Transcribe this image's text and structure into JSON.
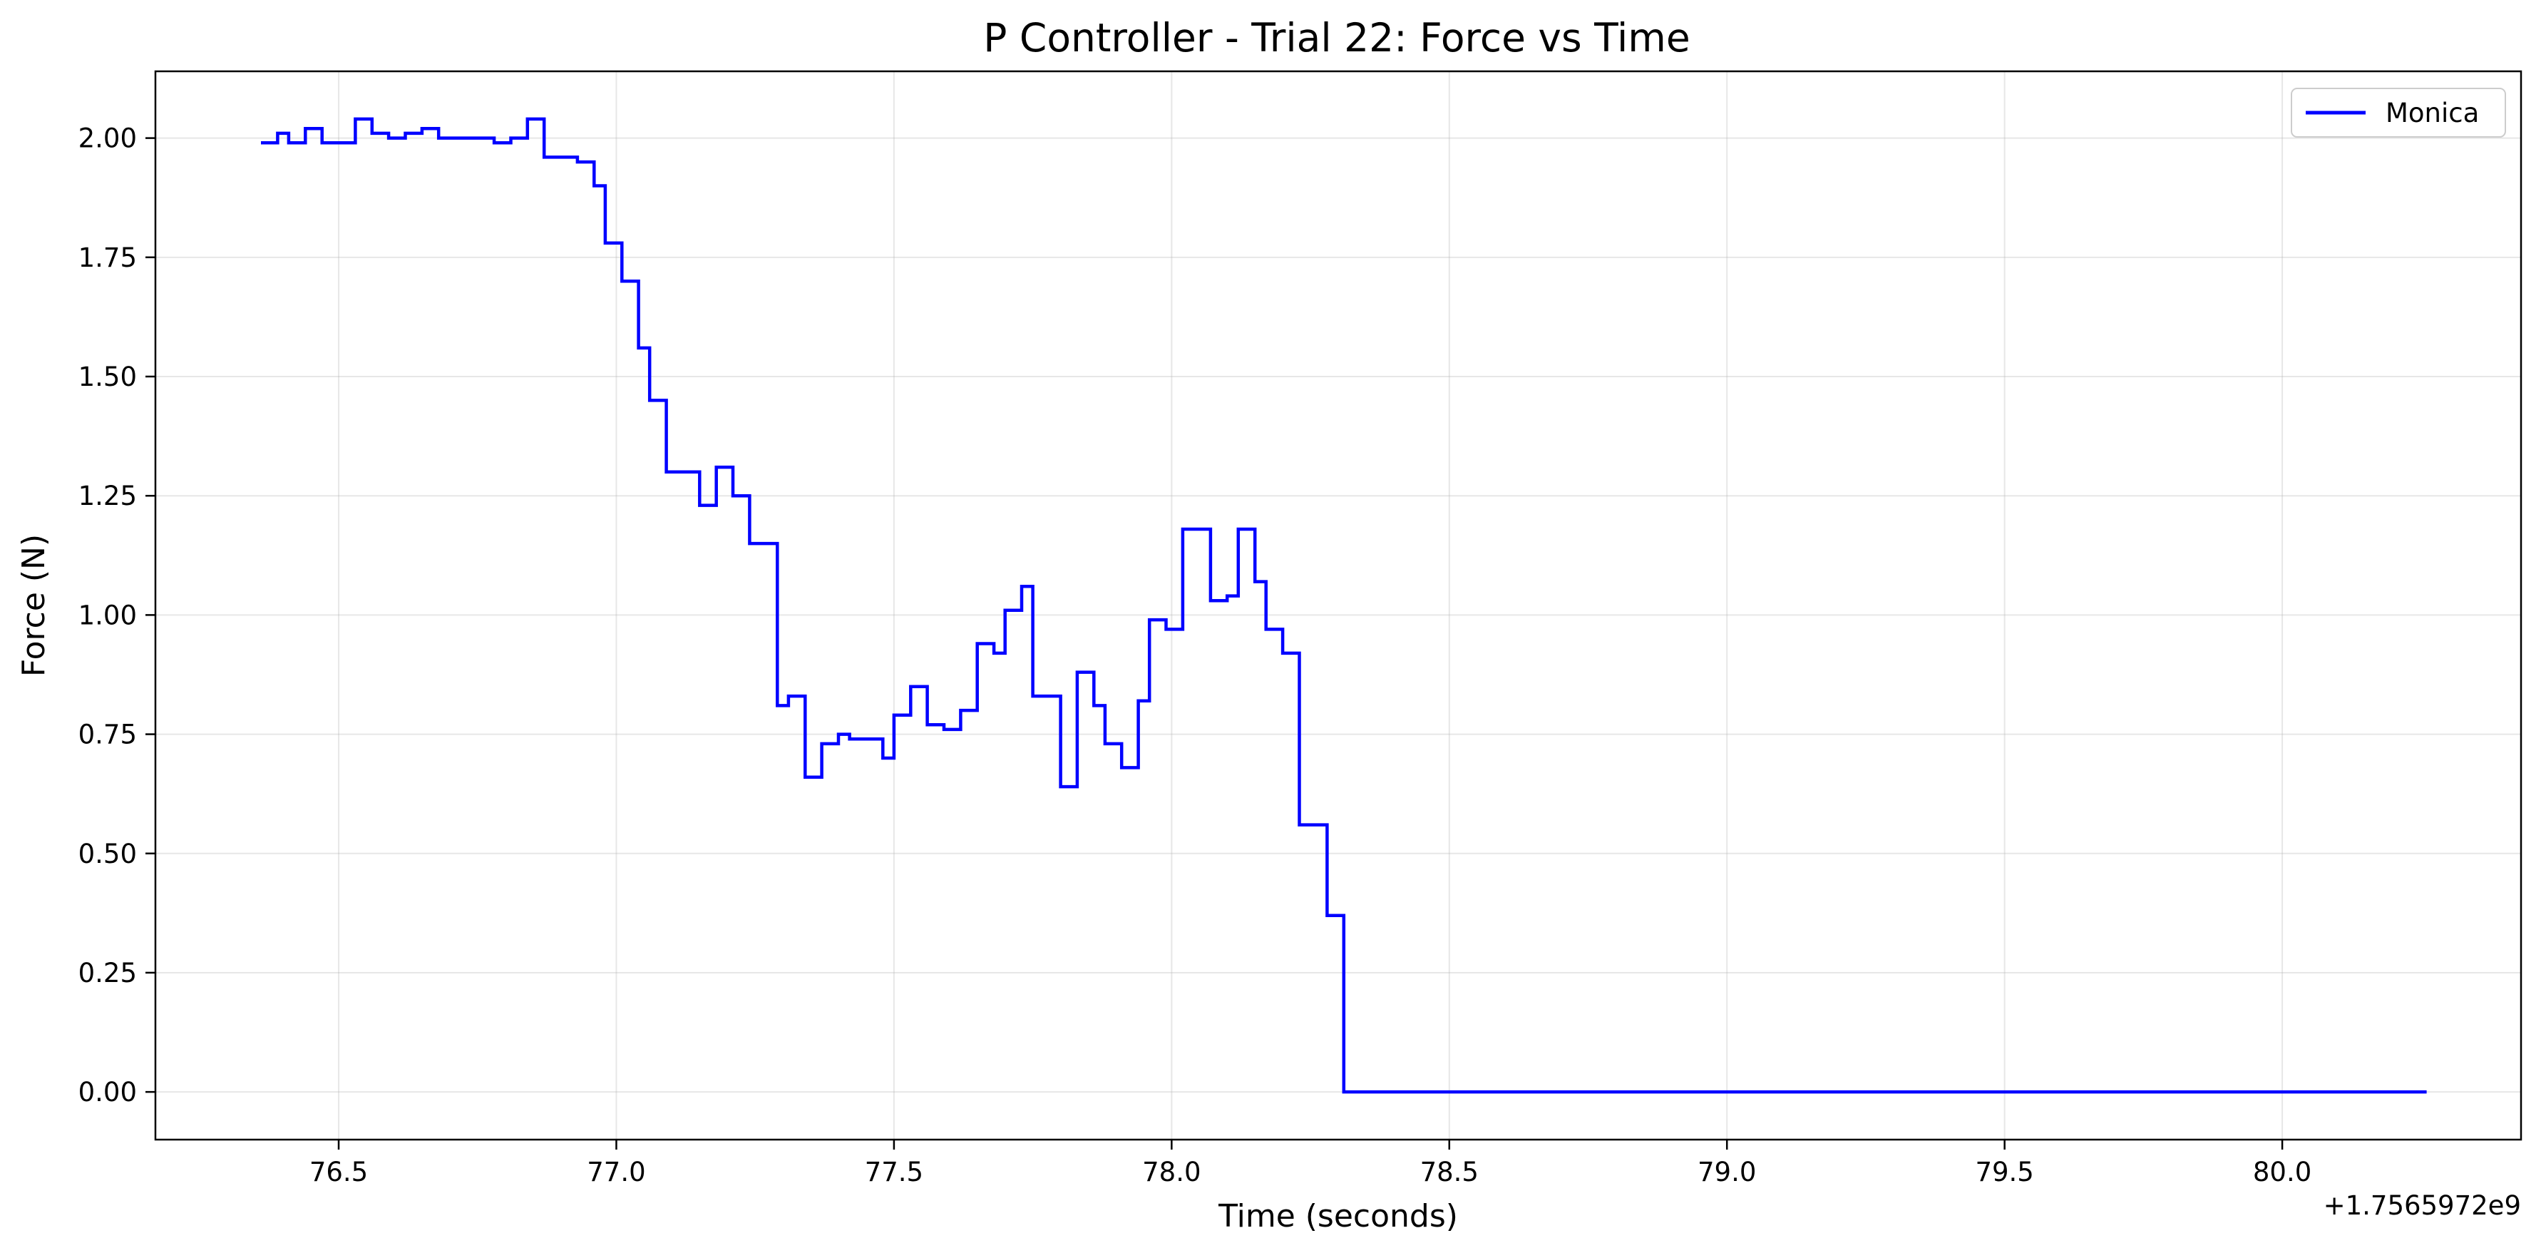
{
  "chart_data": {
    "type": "line",
    "title": "P Controller - Trial 22: Force vs Time",
    "xlabel": "Time (seconds)",
    "ylabel": "Force (N)",
    "x_offset_label": "+1.7565972e9",
    "xlim": [
      76.17,
      80.43
    ],
    "ylim": [
      -0.1,
      2.14
    ],
    "x_ticks": [
      {
        "value": 76.5,
        "label": "76.5"
      },
      {
        "value": 77.0,
        "label": "77.0"
      },
      {
        "value": 77.5,
        "label": "77.5"
      },
      {
        "value": 78.0,
        "label": "78.0"
      },
      {
        "value": 78.5,
        "label": "78.5"
      },
      {
        "value": 79.0,
        "label": "79.0"
      },
      {
        "value": 79.5,
        "label": "79.5"
      },
      {
        "value": 80.0,
        "label": "80.0"
      }
    ],
    "y_ticks": [
      {
        "value": 0.0,
        "label": "0.00"
      },
      {
        "value": 0.25,
        "label": "0.25"
      },
      {
        "value": 0.5,
        "label": "0.50"
      },
      {
        "value": 0.75,
        "label": "0.75"
      },
      {
        "value": 1.0,
        "label": "1.00"
      },
      {
        "value": 1.25,
        "label": "1.25"
      },
      {
        "value": 1.5,
        "label": "1.50"
      },
      {
        "value": 1.75,
        "label": "1.75"
      },
      {
        "value": 2.0,
        "label": "2.00"
      }
    ],
    "grid": true,
    "legend_position": "top-right",
    "series": [
      {
        "name": "Monica",
        "color": "#0000ff",
        "step": true,
        "points": [
          [
            76.36,
            1.99
          ],
          [
            76.39,
            2.01
          ],
          [
            76.41,
            1.99
          ],
          [
            76.44,
            2.02
          ],
          [
            76.47,
            1.99
          ],
          [
            76.5,
            1.99
          ],
          [
            76.53,
            2.04
          ],
          [
            76.56,
            2.01
          ],
          [
            76.59,
            2.0
          ],
          [
            76.62,
            2.01
          ],
          [
            76.65,
            2.02
          ],
          [
            76.68,
            2.0
          ],
          [
            76.71,
            2.0
          ],
          [
            76.74,
            2.0
          ],
          [
            76.78,
            1.99
          ],
          [
            76.81,
            2.0
          ],
          [
            76.84,
            2.04
          ],
          [
            76.87,
            1.96
          ],
          [
            76.9,
            1.96
          ],
          [
            76.93,
            1.95
          ],
          [
            76.96,
            1.9
          ],
          [
            76.98,
            1.78
          ],
          [
            77.01,
            1.7
          ],
          [
            77.04,
            1.56
          ],
          [
            77.06,
            1.45
          ],
          [
            77.09,
            1.3
          ],
          [
            77.12,
            1.3
          ],
          [
            77.15,
            1.23
          ],
          [
            77.18,
            1.31
          ],
          [
            77.21,
            1.25
          ],
          [
            77.24,
            1.15
          ],
          [
            77.27,
            1.15
          ],
          [
            77.29,
            0.81
          ],
          [
            77.31,
            0.83
          ],
          [
            77.34,
            0.66
          ],
          [
            77.37,
            0.73
          ],
          [
            77.4,
            0.75
          ],
          [
            77.42,
            0.74
          ],
          [
            77.45,
            0.74
          ],
          [
            77.48,
            0.7
          ],
          [
            77.5,
            0.79
          ],
          [
            77.53,
            0.85
          ],
          [
            77.56,
            0.77
          ],
          [
            77.59,
            0.76
          ],
          [
            77.62,
            0.8
          ],
          [
            77.65,
            0.94
          ],
          [
            77.68,
            0.92
          ],
          [
            77.7,
            1.01
          ],
          [
            77.73,
            1.06
          ],
          [
            77.75,
            0.83
          ],
          [
            77.78,
            0.83
          ],
          [
            77.8,
            0.64
          ],
          [
            77.83,
            0.88
          ],
          [
            77.86,
            0.81
          ],
          [
            77.88,
            0.73
          ],
          [
            77.91,
            0.68
          ],
          [
            77.94,
            0.82
          ],
          [
            77.96,
            0.99
          ],
          [
            77.99,
            0.97
          ],
          [
            78.02,
            1.18
          ],
          [
            78.05,
            1.18
          ],
          [
            78.07,
            1.03
          ],
          [
            78.1,
            1.04
          ],
          [
            78.12,
            1.18
          ],
          [
            78.15,
            1.07
          ],
          [
            78.17,
            0.97
          ],
          [
            78.2,
            0.92
          ],
          [
            78.23,
            0.56
          ],
          [
            78.26,
            0.56
          ],
          [
            78.28,
            0.37
          ],
          [
            78.31,
            0.0
          ],
          [
            80.26,
            0.0
          ]
        ]
      }
    ]
  }
}
